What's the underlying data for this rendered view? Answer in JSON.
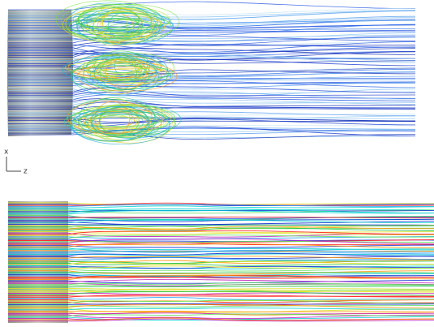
{
  "axis_triad": {
    "vertical": "x",
    "horizontal": "z"
  }
}
